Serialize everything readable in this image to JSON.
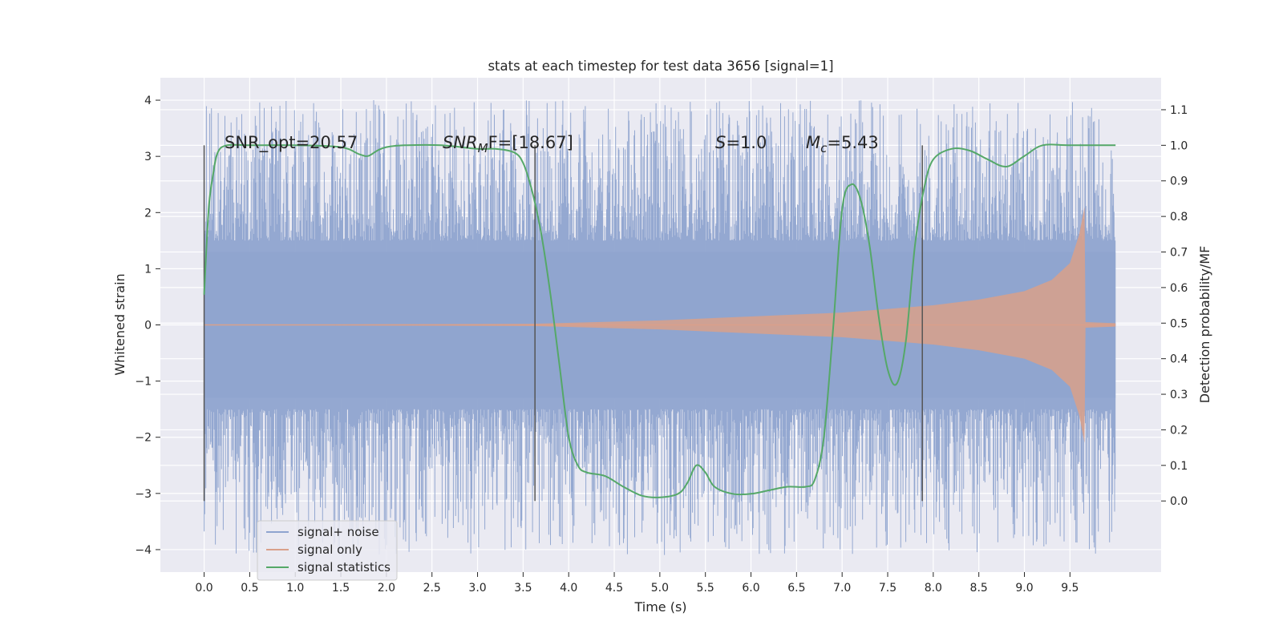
{
  "chart_data": {
    "type": "line",
    "title": "stats at each timestep for test data 3656 [signal=1]",
    "xlabel": "Time (s)",
    "ylabel": "Whitened strain",
    "ylabel_right": "Detection probability/MF",
    "xlim": [
      -0.48,
      10.5
    ],
    "ylim": [
      -4.4,
      4.4
    ],
    "ylim_right": [
      -0.2,
      1.19
    ],
    "x_ticks": [
      "0.0",
      "0.5",
      "1.0",
      "1.5",
      "2.0",
      "2.5",
      "3.0",
      "3.5",
      "4.0",
      "4.5",
      "5.0",
      "5.5",
      "6.0",
      "6.5",
      "7.0",
      "7.5",
      "8.0",
      "8.5",
      "9.0",
      "9.5"
    ],
    "y_ticks": [
      "4",
      "3",
      "2",
      "1",
      "0",
      "−1",
      "−2",
      "−3",
      "−4"
    ],
    "y_right_ticks": [
      "1.1",
      "1.0",
      "0.9",
      "0.8",
      "0.7",
      "0.6",
      "0.5",
      "0.4",
      "0.3",
      "0.2",
      "0.1",
      "0.0"
    ],
    "grid": true,
    "legend_position": "lower-left",
    "annotations": {
      "snr_opt": "SNR_opt=20.57",
      "snr_mf_main": "SNR",
      "snr_mf_sub": "M",
      "snr_mf_rest": "F=[18.67]",
      "s_italic": "S",
      "s_rest": "=1.0",
      "mc_main": "M",
      "mc_sub": "c",
      "mc_rest": "=5.43"
    },
    "vertical_markers": [
      0.0,
      3.63,
      7.88
    ],
    "series": [
      {
        "name": "signal+ noise",
        "color": "#8fa4cf",
        "envelope_core": 1.3,
        "peak_range": [
          -4.1,
          4.0
        ],
        "x_range": [
          0.0,
          10.0
        ]
      },
      {
        "name": "signal only",
        "color": "#d9a08a",
        "envelope": [
          [
            0.0,
            0.0
          ],
          [
            3.6,
            0.02
          ],
          [
            5.0,
            0.08
          ],
          [
            6.0,
            0.15
          ],
          [
            7.0,
            0.22
          ],
          [
            8.0,
            0.35
          ],
          [
            8.5,
            0.45
          ],
          [
            9.0,
            0.6
          ],
          [
            9.3,
            0.8
          ],
          [
            9.5,
            1.1
          ],
          [
            9.6,
            1.6
          ],
          [
            9.66,
            2.1
          ],
          [
            9.67,
            0.05
          ],
          [
            10.0,
            0.03
          ]
        ]
      },
      {
        "name": "signal statistics",
        "color": "#55a868",
        "axis": "right",
        "x": [
          0.0,
          0.05,
          0.1,
          0.15,
          0.25,
          0.5,
          1.0,
          1.5,
          1.7,
          1.8,
          1.9,
          2.0,
          2.2,
          2.6,
          3.0,
          3.2,
          3.4,
          3.5,
          3.6,
          3.7,
          3.8,
          3.9,
          4.0,
          4.1,
          4.2,
          4.4,
          4.6,
          4.8,
          5.0,
          5.2,
          5.3,
          5.4,
          5.5,
          5.6,
          5.8,
          6.0,
          6.2,
          6.4,
          6.6,
          6.7,
          6.8,
          6.9,
          7.0,
          7.1,
          7.2,
          7.3,
          7.4,
          7.5,
          7.6,
          7.7,
          7.8,
          7.9,
          8.0,
          8.2,
          8.4,
          8.6,
          8.8,
          9.0,
          9.2,
          9.5,
          10.0
        ],
        "y": [
          0.58,
          0.82,
          0.92,
          0.98,
          1.0,
          1.0,
          1.0,
          0.995,
          0.975,
          0.97,
          0.985,
          0.995,
          1.0,
          1.0,
          0.99,
          0.99,
          0.98,
          0.95,
          0.87,
          0.75,
          0.58,
          0.38,
          0.18,
          0.1,
          0.08,
          0.07,
          0.04,
          0.015,
          0.01,
          0.02,
          0.05,
          0.1,
          0.08,
          0.04,
          0.02,
          0.02,
          0.03,
          0.04,
          0.04,
          0.06,
          0.18,
          0.48,
          0.82,
          0.89,
          0.85,
          0.72,
          0.52,
          0.37,
          0.33,
          0.45,
          0.72,
          0.88,
          0.96,
          0.99,
          0.985,
          0.96,
          0.94,
          0.97,
          1.0,
          1.0,
          1.0
        ]
      }
    ]
  }
}
